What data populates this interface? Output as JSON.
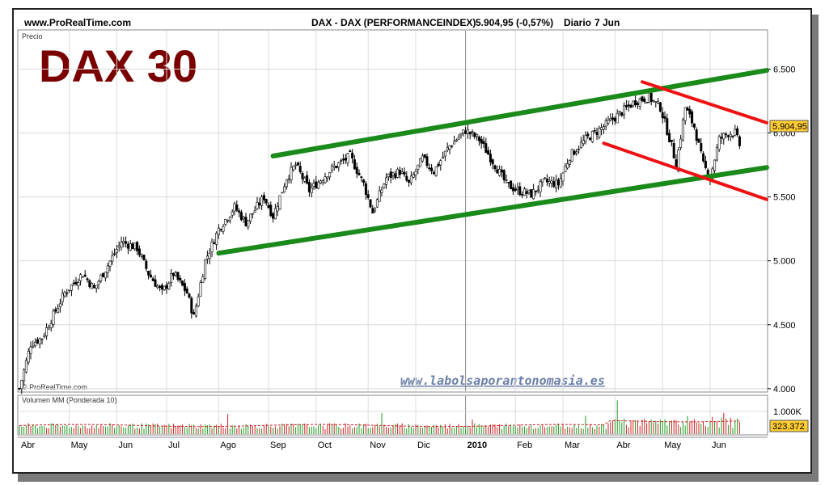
{
  "header": {
    "site": "www.ProRealTime.com",
    "instrument": "DAX - DAX (PERFORMANCEINDEX)",
    "quote": "5.904,95 (-0,57%)",
    "period": "Diario",
    "date": "7 Jun"
  },
  "watermark_title": "DAX 30",
  "price_panel_label": "Precio",
  "copyright": "© ProRealTime.com",
  "website": "www.labolsaporantonomasia.es",
  "volume_panel_label": "Volumen MM (Ponderada 10)",
  "last_price_label": "5.904,95",
  "last_volume_label": "323.372",
  "colors": {
    "trend_up": "#1a8a1a",
    "trend_down": "#ee1111",
    "price_tag": "#ffcc33",
    "watermark": "#7a0000",
    "website": "#6b7fa8"
  },
  "chart_data": {
    "type": "candlestick",
    "title": "DAX 30",
    "y_ticks": [
      "6.500",
      "6.000",
      "5.500",
      "5.000",
      "4.500",
      "4.000"
    ],
    "y_tick_values": [
      6500,
      6000,
      5500,
      5000,
      4500,
      4000
    ],
    "ylim": [
      3980,
      6800
    ],
    "x_labels": [
      "Abr",
      "May",
      "Jun",
      "Jul",
      "Ago",
      "Sep",
      "Oct",
      "Nov",
      "Dic",
      "2010",
      "Feb",
      "Mar",
      "Abr",
      "May",
      "Jun"
    ],
    "x_label_day_index": [
      0,
      22,
      43,
      65,
      88,
      110,
      131,
      154,
      175,
      197,
      219,
      240,
      263,
      284,
      305
    ],
    "volume_ticks": [
      "1.000K"
    ],
    "series_close": [
      {
        "day": 0,
        "value": 4000
      },
      {
        "day": 5,
        "value": 4350
      },
      {
        "day": 10,
        "value": 4400
      },
      {
        "day": 20,
        "value": 4750
      },
      {
        "day": 28,
        "value": 4900
      },
      {
        "day": 33,
        "value": 4780
      },
      {
        "day": 45,
        "value": 5150
      },
      {
        "day": 52,
        "value": 5100
      },
      {
        "day": 57,
        "value": 4900
      },
      {
        "day": 63,
        "value": 4750
      },
      {
        "day": 68,
        "value": 4900
      },
      {
        "day": 74,
        "value": 4750
      },
      {
        "day": 77,
        "value": 4560
      },
      {
        "day": 82,
        "value": 5000
      },
      {
        "day": 88,
        "value": 5250
      },
      {
        "day": 95,
        "value": 5420
      },
      {
        "day": 100,
        "value": 5300
      },
      {
        "day": 108,
        "value": 5500
      },
      {
        "day": 112,
        "value": 5350
      },
      {
        "day": 118,
        "value": 5650
      },
      {
        "day": 122,
        "value": 5750
      },
      {
        "day": 128,
        "value": 5550
      },
      {
        "day": 138,
        "value": 5720
      },
      {
        "day": 146,
        "value": 5820
      },
      {
        "day": 152,
        "value": 5600
      },
      {
        "day": 156,
        "value": 5380
      },
      {
        "day": 162,
        "value": 5650
      },
      {
        "day": 168,
        "value": 5700
      },
      {
        "day": 172,
        "value": 5600
      },
      {
        "day": 178,
        "value": 5800
      },
      {
        "day": 183,
        "value": 5700
      },
      {
        "day": 190,
        "value": 5900
      },
      {
        "day": 197,
        "value": 6020
      },
      {
        "day": 203,
        "value": 5950
      },
      {
        "day": 210,
        "value": 5750
      },
      {
        "day": 215,
        "value": 5600
      },
      {
        "day": 220,
        "value": 5550
      },
      {
        "day": 226,
        "value": 5520
      },
      {
        "day": 232,
        "value": 5620
      },
      {
        "day": 238,
        "value": 5600
      },
      {
        "day": 243,
        "value": 5820
      },
      {
        "day": 250,
        "value": 5950
      },
      {
        "day": 258,
        "value": 6050
      },
      {
        "day": 265,
        "value": 6150
      },
      {
        "day": 272,
        "value": 6250
      },
      {
        "day": 278,
        "value": 6280
      },
      {
        "day": 283,
        "value": 6200
      },
      {
        "day": 288,
        "value": 5900
      },
      {
        "day": 290,
        "value": 5750
      },
      {
        "day": 294,
        "value": 6200
      },
      {
        "day": 298,
        "value": 6050
      },
      {
        "day": 302,
        "value": 5750
      },
      {
        "day": 305,
        "value": 5650
      },
      {
        "day": 309,
        "value": 5950
      },
      {
        "day": 313,
        "value": 6000
      },
      {
        "day": 316,
        "value": 6000
      },
      {
        "day": 318,
        "value": 5905
      }
    ],
    "trend_lines": [
      {
        "color": "trend_up",
        "from": [
          112,
          5820
        ],
        "to": [
          330,
          6490
        ]
      },
      {
        "color": "trend_up",
        "from": [
          88,
          5060
        ],
        "to": [
          330,
          5730
        ]
      },
      {
        "color": "trend_down",
        "from": [
          275,
          6400
        ],
        "to": [
          330,
          6080
        ]
      },
      {
        "color": "trend_down",
        "from": [
          258,
          5920
        ],
        "to": [
          330,
          5480
        ]
      }
    ],
    "last_price": 5904.95,
    "volume_max": 1000
  }
}
